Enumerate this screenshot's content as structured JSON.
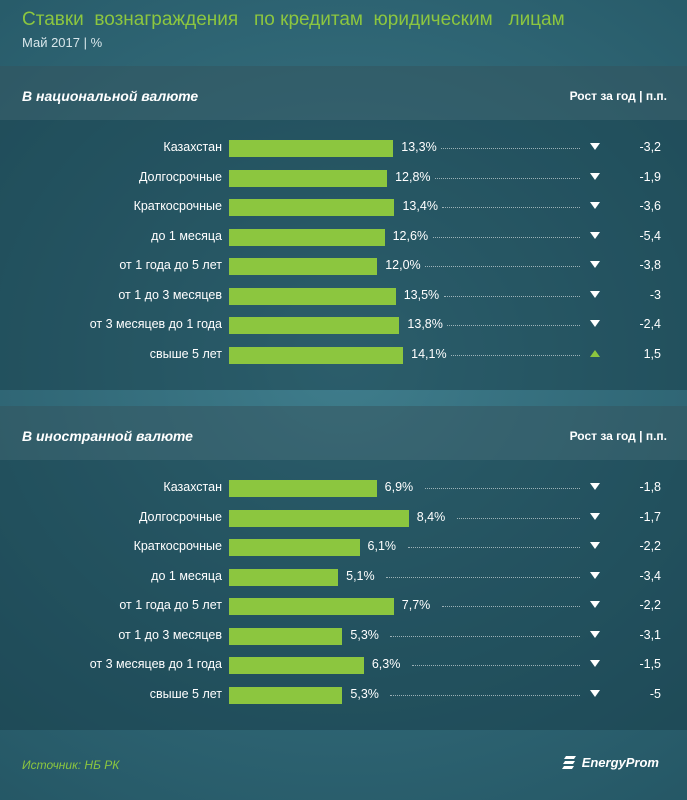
{
  "header": {
    "title": "Ставки  вознаграждения   по кредитам  юридическим   лицам",
    "subtitle": "Май 2017 | %"
  },
  "colors": {
    "bar": "#8cc63f",
    "up_arrow": "#8cc63f",
    "down_arrow": "#ffffff"
  },
  "chart_data": [
    {
      "type": "bar",
      "title": "В национальной валюте",
      "growth_header": "Рост за год | п.п.",
      "categories": [
        "Казахстан",
        "Долгосрочные",
        "Краткосрочные",
        "до 1 месяца",
        "от 1 года до 5 лет",
        "от 1 до 3 месяцев",
        "от 3 месяцев до 1 года",
        "свыше 5 лет"
      ],
      "values": [
        13.3,
        12.8,
        13.4,
        12.6,
        12.0,
        13.5,
        13.8,
        14.1
      ],
      "value_labels": [
        "13,3%",
        "12,8%",
        "13,4%",
        "12,6%",
        "12,0%",
        "13,5%",
        "13,8%",
        "14,1%"
      ],
      "growth": [
        -3.2,
        -1.9,
        -3.6,
        -5.4,
        -3.8,
        -3.0,
        -2.4,
        1.5
      ],
      "growth_labels": [
        "-3,2",
        "-1,9",
        "-3,6",
        "-5,4",
        "-3,8",
        "-3",
        "-2,4",
        "1,5"
      ],
      "trend": [
        "down",
        "down",
        "down",
        "down",
        "down",
        "down",
        "down",
        "up"
      ]
    },
    {
      "type": "bar",
      "title": "В иностранной валюте",
      "growth_header": "Рост за год | п.п.",
      "categories": [
        "Казахстан",
        "Долгосрочные",
        "Краткосрочные",
        "до 1 месяца",
        "от 1 года до 5 лет",
        "от 1 до 3 месяцев",
        "от 3 месяцев до 1 года",
        "свыше 5 лет"
      ],
      "values": [
        6.9,
        8.4,
        6.1,
        5.1,
        7.7,
        5.3,
        6.3,
        5.3
      ],
      "value_labels": [
        "6,9%",
        "8,4%",
        "6,1%",
        "5,1%",
        "7,7%",
        "5,3%",
        "6,3%",
        "5,3%"
      ],
      "growth": [
        -1.8,
        -1.7,
        -2.2,
        -3.4,
        -2.2,
        -3.1,
        -1.5,
        -5.0
      ],
      "growth_labels": [
        "-1,8",
        "-1,7",
        "-2,2",
        "-3,4",
        "-2,2",
        "-3,1",
        "-1,5",
        "-5"
      ],
      "trend": [
        "down",
        "down",
        "down",
        "down",
        "down",
        "down",
        "down",
        "down"
      ]
    }
  ],
  "footer": {
    "source": "Источник: НБ РК",
    "logo_text": "EnergyProm"
  }
}
